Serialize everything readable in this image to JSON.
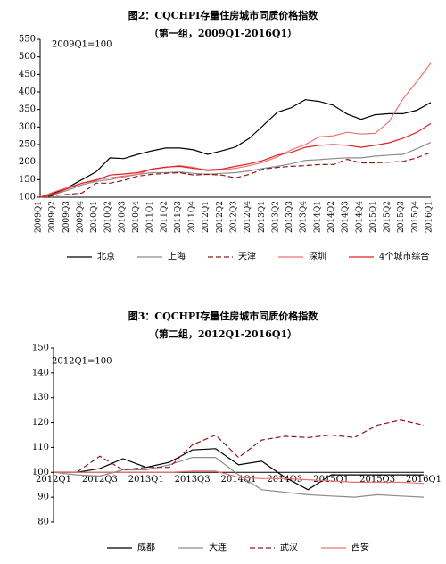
{
  "chart_data": [
    {
      "type": "line",
      "title": "图2：CQCHPI存量住房城市同质价格指数",
      "subtitle": "（第一组，2009Q1-2016Q1）",
      "annotation": "2009Q1=100",
      "categories": [
        "2009Q1",
        "2009Q2",
        "2009Q3",
        "2009Q4",
        "2010Q1",
        "2010Q2",
        "2010Q3",
        "2010Q4",
        "2011Q1",
        "2011Q2",
        "2011Q3",
        "2011Q4",
        "2012Q1",
        "2012Q2",
        "2012Q3",
        "2012Q4",
        "2013Q1",
        "2013Q2",
        "2013Q3",
        "2013Q4",
        "2014Q1",
        "2014Q2",
        "2014Q3",
        "2014Q4",
        "2015Q1",
        "2015Q2",
        "2015Q3",
        "2015Q4",
        "2016Q1"
      ],
      "ylim": [
        100,
        550
      ],
      "yticks": [
        100,
        150,
        200,
        250,
        300,
        350,
        400,
        450,
        500,
        550
      ],
      "x_labels_rotated": true,
      "series": [
        {
          "name": "北京",
          "color": "#000000",
          "values": [
            100,
            112,
            128,
            150,
            172,
            212,
            210,
            222,
            232,
            240,
            240,
            235,
            222,
            232,
            243,
            268,
            305,
            342,
            355,
            378,
            373,
            362,
            337,
            322,
            335,
            338,
            338,
            348,
            370
          ]
        },
        {
          "name": "上海",
          "color": "#8c8c8c",
          "values": [
            100,
            108,
            120,
            135,
            145,
            150,
            158,
            165,
            170,
            170,
            172,
            168,
            165,
            168,
            170,
            175,
            182,
            188,
            195,
            205,
            207,
            210,
            212,
            212,
            217,
            220,
            222,
            238,
            256
          ]
        },
        {
          "name": "天津",
          "color": "#8b1a1a",
          "dashed": true,
          "values": [
            100,
            105,
            108,
            112,
            140,
            140,
            148,
            160,
            165,
            168,
            170,
            163,
            165,
            163,
            155,
            165,
            180,
            185,
            188,
            190,
            193,
            193,
            208,
            198,
            198,
            200,
            202,
            212,
            228
          ]
        },
        {
          "name": "深圳",
          "color": "#f07070",
          "values": [
            100,
            115,
            128,
            140,
            150,
            155,
            160,
            165,
            180,
            185,
            190,
            185,
            175,
            178,
            182,
            190,
            200,
            215,
            235,
            250,
            272,
            275,
            285,
            280,
            282,
            315,
            380,
            430,
            482
          ]
        },
        {
          "name": "4个城市综合",
          "color": "#e02020",
          "values": [
            100,
            110,
            125,
            140,
            148,
            163,
            166,
            170,
            180,
            186,
            188,
            182,
            178,
            180,
            188,
            195,
            205,
            220,
            228,
            242,
            248,
            250,
            248,
            242,
            248,
            255,
            268,
            285,
            310
          ]
        }
      ]
    },
    {
      "type": "line",
      "title": "图3：CQCHPI存量住房城市同质价格指数",
      "subtitle": "（第二组，2012Q1-2016Q1）",
      "annotation": "2012Q1=100",
      "categories": [
        "2012Q1",
        null,
        "2012Q3",
        null,
        "2013Q1",
        null,
        "2013Q3",
        null,
        "2014Q1",
        null,
        "2014Q3",
        null,
        "2015Q1",
        null,
        "2015Q3",
        null,
        "2016Q1"
      ],
      "ylim": [
        80,
        150
      ],
      "yticks": [
        80,
        90,
        100,
        110,
        120,
        130,
        140,
        150
      ],
      "xaxis_crosses": 100,
      "series": [
        {
          "name": "成都",
          "color": "#000000",
          "values": [
            100,
            100,
            101.5,
            105.5,
            102,
            104,
            109,
            109.5,
            103,
            104.5,
            98,
            93,
            99,
            99,
            99,
            99,
            99
          ]
        },
        {
          "name": "大连",
          "color": "#8c8c8c",
          "values": [
            100,
            99,
            98.5,
            101,
            101,
            103,
            106,
            106,
            99,
            93,
            92,
            91,
            90.5,
            90,
            91,
            90.5,
            90
          ]
        },
        {
          "name": "武汉",
          "color": "#8b1a1a",
          "dashed": true,
          "values": [
            100,
            100,
            106.5,
            101,
            102,
            102,
            111,
            115,
            106,
            113,
            114.5,
            114,
            115,
            114,
            119,
            121,
            119
          ]
        },
        {
          "name": "西安",
          "color": "#f07070",
          "values": [
            100,
            100,
            100,
            100,
            100,
            100,
            100.5,
            100.5,
            98,
            97.5,
            97.5,
            97,
            96.5,
            96,
            96,
            96,
            95.5
          ]
        }
      ]
    }
  ]
}
